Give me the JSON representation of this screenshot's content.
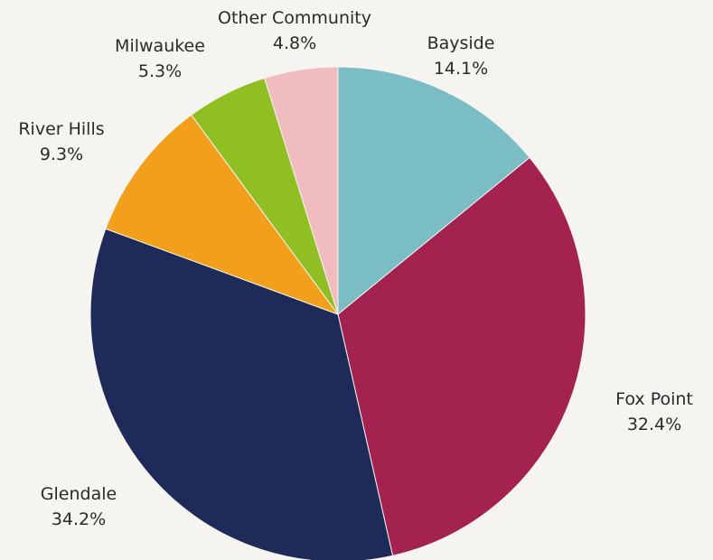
{
  "chart_data": {
    "type": "pie",
    "slices": [
      {
        "label": "Bayside",
        "value": 14.1,
        "display": "14.1%",
        "color": "#7bbdc4"
      },
      {
        "label": "Fox Point",
        "value": 32.4,
        "display": "32.4%",
        "color": "#a3224f"
      },
      {
        "label": "Glendale",
        "value": 34.2,
        "display": "34.2%",
        "color": "#1e2a57"
      },
      {
        "label": "River Hills",
        "value": 9.3,
        "display": "9.3%",
        "color": "#f2a01c"
      },
      {
        "label": "Milwaukee",
        "value": 5.3,
        "display": "5.3%",
        "color": "#8fbf22"
      },
      {
        "label": "Other Community",
        "value": 4.8,
        "display": "4.8%",
        "color": "#f1bcc0"
      }
    ],
    "start": "12 o'clock",
    "direction": "clockwise",
    "legend": "none"
  }
}
